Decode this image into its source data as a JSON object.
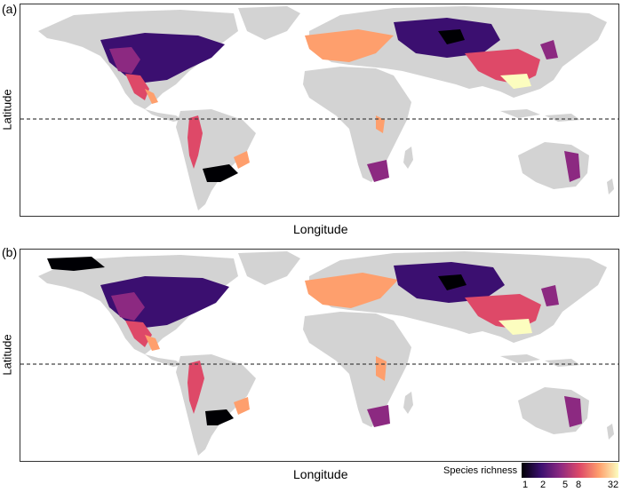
{
  "panels": {
    "a": {
      "label": "(a)",
      "xlabel": "Longitude",
      "ylabel": "Latitude"
    },
    "b": {
      "label": "(b)",
      "xlabel": "Longitude",
      "ylabel": "Latitude"
    }
  },
  "legend": {
    "title": "Species richness",
    "ticks": [
      "1",
      "2",
      "5",
      "8",
      "32"
    ],
    "colors": [
      "#000004",
      "#3b0f70",
      "#8c2981",
      "#de4968",
      "#fe9f6d",
      "#fcfdbf"
    ]
  },
  "colors": {
    "land": "#d3d3d3",
    "equator": "#444444"
  }
}
